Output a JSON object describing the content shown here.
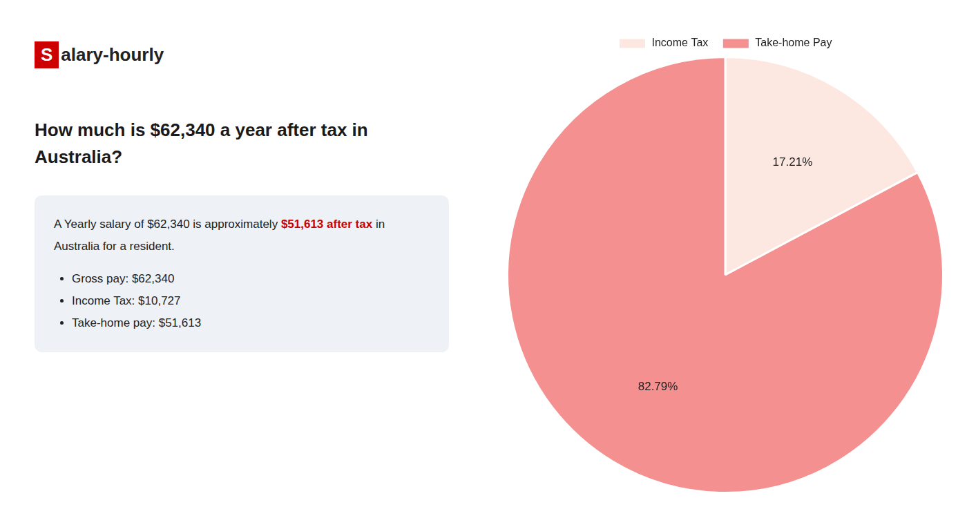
{
  "chart_data": {
    "type": "pie",
    "title": "How much is $62,340 a year after tax in\nAustralia?",
    "categories": [
      "Income Tax",
      "Take-home Pay"
    ],
    "values": [
      17.21,
      82.79
    ],
    "value_labels": [
      "17.21%",
      "82.79%"
    ],
    "data_labels": true,
    "colors": [
      "#fce8e0",
      "#f49090"
    ],
    "legend": "top",
    "annotations": [
      {
        "runs": [
          {
            "text": "S",
            "color": "#cc0000"
          },
          {
            "text": "alary-hourly"
          }
        ]
      },
      {
        "runs": [
          {
            "text": "A Yearly salary of $62,340 is approximately "
          },
          {
            "text": "$51,613 after tax",
            "color": "#cc0000"
          },
          {
            "text": " in"
          }
        ]
      },
      {
        "runs": [
          {
            "text": "Australia for a resident."
          }
        ]
      },
      {
        "runs": [
          {
            "text": "Gross pay: $62,340"
          }
        ],
        "marker": "bullet"
      },
      {
        "runs": [
          {
            "text": "Income Tax: $10,727"
          }
        ],
        "marker": "bullet"
      },
      {
        "runs": [
          {
            "text": "Take-home pay: $51,613"
          }
        ],
        "marker": "bullet"
      }
    ]
  }
}
